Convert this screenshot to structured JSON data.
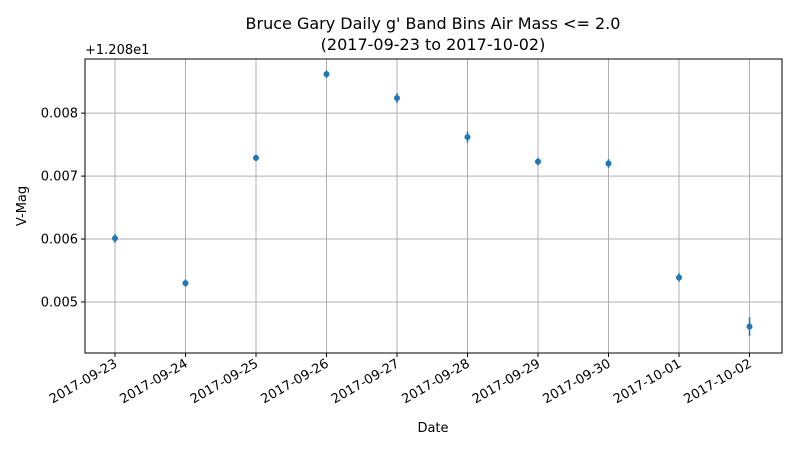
{
  "chart_data": {
    "type": "scatter",
    "title_line1": "Bruce Gary Daily g' Band Bins Air Mass <= 2.0",
    "title_line2": "(2017-09-23 to 2017-10-02)",
    "xlabel": "Date",
    "ylabel": "V-Mag",
    "y_offset_label": "+1.208e1",
    "y_inverted": true,
    "grid": true,
    "ylim": [
      0.00886,
      0.00419
    ],
    "yticks": [
      0.005,
      0.006,
      0.007,
      0.008
    ],
    "ytick_labels": [
      "0.005",
      "0.006",
      "0.007",
      "0.008"
    ],
    "x": [
      "2017-09-23",
      "2017-09-24",
      "2017-09-25",
      "2017-09-26",
      "2017-09-27",
      "2017-09-28",
      "2017-09-29",
      "2017-09-30",
      "2017-10-01",
      "2017-10-02"
    ],
    "values": [
      0.00601,
      0.0053,
      0.00729,
      0.00862,
      0.00824,
      0.00762,
      0.00723,
      0.0072,
      0.00539,
      0.00461
    ],
    "errors": [
      7e-05,
      6e-05,
      5e-05,
      6e-05,
      8e-05,
      9e-05,
      6e-05,
      7e-05,
      7e-05,
      0.00015
    ],
    "marker_color": "#1f77b4",
    "grid_color": "#b0b0b0"
  }
}
